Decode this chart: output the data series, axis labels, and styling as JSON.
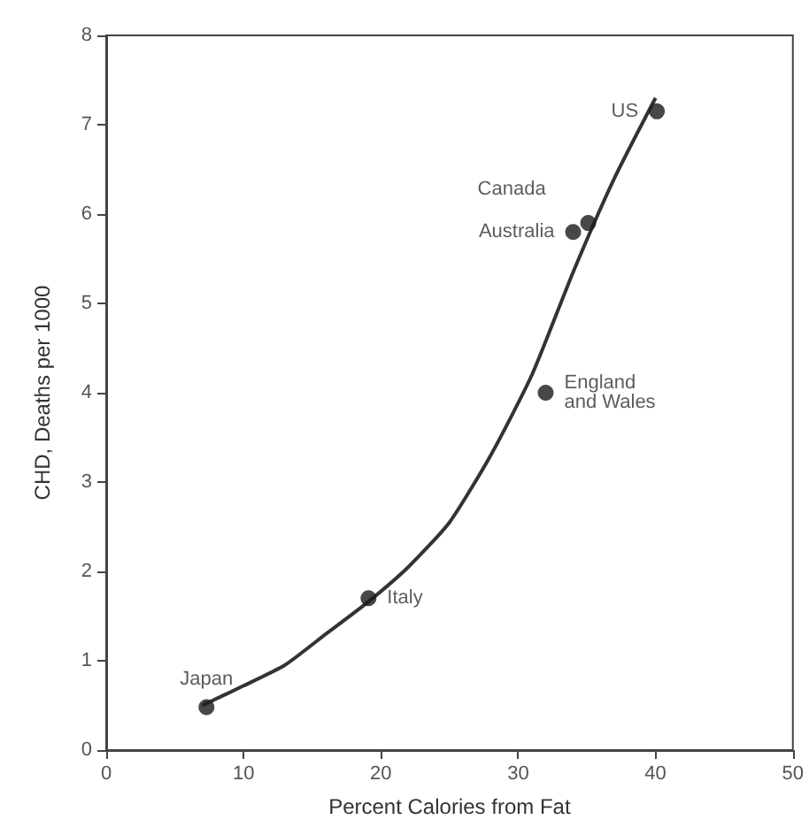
{
  "chart_data": {
    "type": "scatter",
    "xlabel": "Percent Calories from Fat",
    "ylabel": "CHD, Deaths per 1000",
    "xlim": [
      0,
      50
    ],
    "xticks": [
      0,
      10,
      20,
      30,
      40,
      50
    ],
    "ylim": [
      0,
      8
    ],
    "yticks": [
      0,
      1,
      2,
      3,
      4,
      5,
      6,
      7,
      8
    ],
    "grid": false,
    "marker": "circle",
    "series": [
      {
        "color": "#1a1a1a",
        "x": [
          7.3,
          19.1,
          32,
          34,
          35.1,
          40.1
        ],
        "values": [
          0.48,
          1.7,
          4.0,
          5.8,
          5.9,
          7.15
        ],
        "value_labels": [
          "Japan",
          "Italy",
          "England\nand Wales",
          "Australia",
          "Canada",
          "US"
        ]
      },
      {
        "type": "line",
        "color": "#333333",
        "marker": "none",
        "x": [
          7,
          10,
          13,
          16,
          19,
          22,
          25,
          28,
          31,
          34,
          37,
          40
        ],
        "values": [
          0.5,
          0.72,
          0.95,
          1.3,
          1.65,
          2.05,
          2.55,
          3.3,
          4.2,
          5.35,
          6.4,
          7.3
        ]
      }
    ]
  }
}
